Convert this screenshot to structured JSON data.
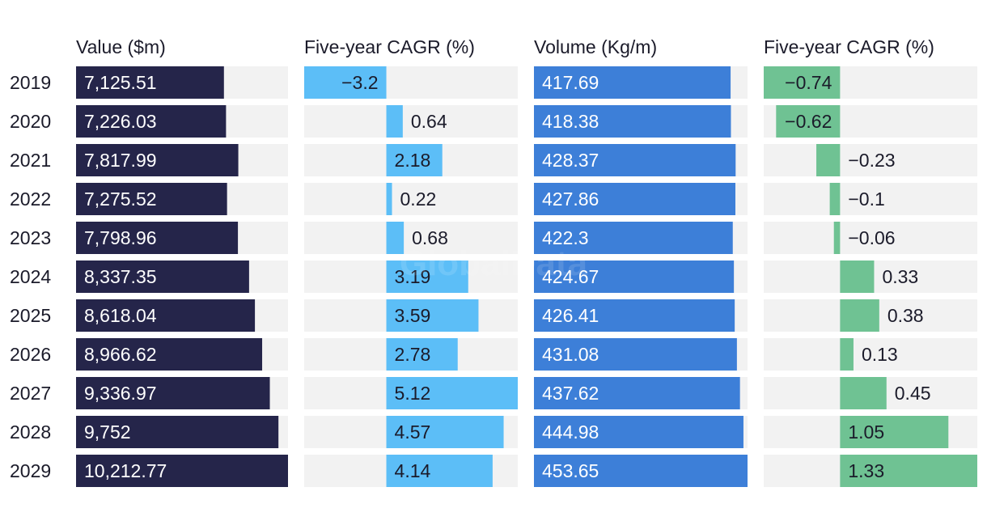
{
  "watermark": "GlobalData",
  "chart_data": {
    "type": "bar",
    "categories": [
      "2019",
      "2020",
      "2021",
      "2022",
      "2023",
      "2024",
      "2025",
      "2026",
      "2027",
      "2028",
      "2029"
    ],
    "panels": [
      {
        "name": "Value ($m)",
        "color": "#25254a",
        "label_color": "#ffffff",
        "track_color": "#f2f2f2",
        "xlim": [
          0,
          10212.77
        ],
        "values": [
          7125.51,
          7226.03,
          7817.99,
          7275.52,
          7798.96,
          8337.35,
          8618.04,
          8966.62,
          9336.97,
          9752,
          10212.77
        ],
        "labels": [
          "7,125.51",
          "7,226.03",
          "7,817.99",
          "7,275.52",
          "7,798.96",
          "8,337.35",
          "8,618.04",
          "8,966.62",
          "9,336.97",
          "9,752",
          "10,212.77"
        ]
      },
      {
        "name": "Five-year CAGR (%)",
        "color": "#5cbef7",
        "label_color": "#1b1b2a",
        "track_color": "#f2f2f2",
        "xlim": [
          -3.2,
          5.12
        ],
        "values": [
          -3.2,
          0.64,
          2.18,
          0.22,
          0.68,
          3.19,
          3.59,
          2.78,
          5.12,
          4.57,
          4.14
        ],
        "labels": [
          "−3.2",
          "0.64",
          "2.18",
          "0.22",
          "0.68",
          "3.19",
          "3.59",
          "2.78",
          "5.12",
          "4.57",
          "4.14"
        ]
      },
      {
        "name": "Volume (Kg/m)",
        "color": "#3d7fd8",
        "label_color": "#ffffff",
        "track_color": "#f2f2f2",
        "xlim": [
          0,
          453.65
        ],
        "values": [
          417.69,
          418.38,
          428.37,
          427.86,
          422.3,
          424.67,
          426.41,
          431.08,
          437.62,
          444.98,
          453.65
        ],
        "labels": [
          "417.69",
          "418.38",
          "428.37",
          "427.86",
          "422.3",
          "424.67",
          "426.41",
          "431.08",
          "437.62",
          "444.98",
          "453.65"
        ]
      },
      {
        "name": "Five-year CAGR (%)",
        "color": "#6fc293",
        "label_color": "#1b1b2a",
        "track_color": "#f2f2f2",
        "xlim": [
          -0.74,
          1.33
        ],
        "values": [
          -0.74,
          -0.62,
          -0.23,
          -0.1,
          -0.06,
          0.33,
          0.38,
          0.13,
          0.45,
          1.05,
          1.33
        ],
        "labels": [
          "−0.74",
          "−0.62",
          "−0.23",
          "−0.1",
          "−0.06",
          "0.33",
          "0.38",
          "0.13",
          "0.45",
          "1.05",
          "1.33"
        ]
      }
    ]
  }
}
